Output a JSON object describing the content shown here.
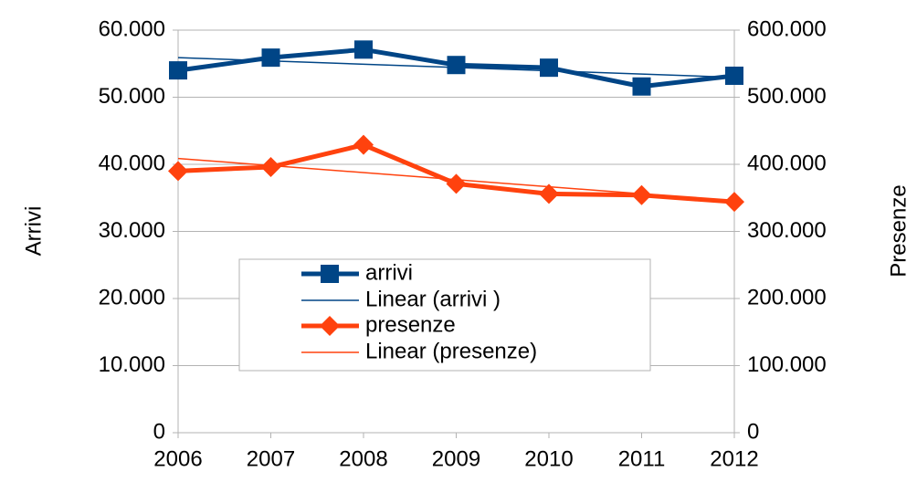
{
  "chart_data": {
    "type": "line",
    "x": [
      2006,
      2007,
      2008,
      2009,
      2010,
      2011,
      2012
    ],
    "xlim": [
      2006,
      2012
    ],
    "xticks": [
      2006,
      2007,
      2008,
      2009,
      2010,
      2011,
      2012
    ],
    "ylim": [
      0,
      60000
    ],
    "yticks": [
      0,
      {
        "value": 10000,
        "label": "10.000"
      },
      {
        "value": 20000,
        "label": "20.000"
      },
      {
        "value": 30000,
        "label": "30.000"
      },
      {
        "value": 40000,
        "label": "40.000"
      },
      {
        "value": 50000,
        "label": "50.000"
      },
      {
        "value": 60000,
        "label": "60.000"
      }
    ],
    "y2lim": [
      0,
      600000
    ],
    "y2ticks": [
      0,
      {
        "value": 100000,
        "label": "100.000"
      },
      {
        "value": 200000,
        "label": "200.000"
      },
      {
        "value": 300000,
        "label": "300.000"
      },
      {
        "value": 400000,
        "label": "400.000"
      },
      {
        "value": 500000,
        "label": "500.000"
      },
      {
        "value": 600000,
        "label": "600.000"
      }
    ],
    "ylabel": "Arrivi",
    "y2label": "Presenze",
    "grid": true,
    "series": [
      {
        "name": "arrivi",
        "color": "#004586",
        "marker": "square",
        "values": [
          54000,
          55900,
          57100,
          54800,
          54400,
          51600,
          53200
        ],
        "trendline": {
          "name": "Linear (arrivi )",
          "color": "#004586"
        }
      },
      {
        "name": "presenze",
        "color": "#ff420e",
        "marker": "diamond",
        "axis": "y2",
        "values": [
          390000,
          396000,
          429000,
          371000,
          356000,
          354000,
          344000
        ],
        "trendline": {
          "name": "Linear (presenze)",
          "color": "#ff420e"
        }
      }
    ]
  }
}
